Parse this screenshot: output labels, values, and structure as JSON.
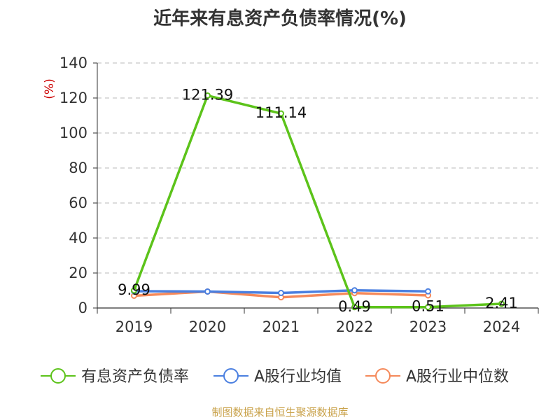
{
  "title": "近年来有息资产负债率情况(%)",
  "source": "制图数据来自恒生聚源数据库",
  "chart_data": {
    "type": "line",
    "title": "近年来有息资产负债率情况(%)",
    "y_unit": "(%)",
    "categories": [
      "2019",
      "2020",
      "2021",
      "2022",
      "2023",
      "2024"
    ],
    "ylim": [
      0,
      140
    ],
    "yticks": [
      0,
      20,
      40,
      60,
      80,
      100,
      120,
      140
    ],
    "grid": true,
    "legend_position": "bottom",
    "series": [
      {
        "name": "有息资产负债率",
        "color": "#5cc31a",
        "values": [
          9.99,
          121.39,
          111.14,
          0.49,
          0.51,
          2.41
        ],
        "labels": [
          "9.99",
          "121.39",
          "111.14",
          "0.49",
          "0.51",
          "2.41"
        ]
      },
      {
        "name": "A股行业均值",
        "color": "#4a7fe0",
        "values": [
          9.6,
          9.4,
          8.6,
          10.1,
          9.5,
          null
        ]
      },
      {
        "name": "A股行业中位数",
        "color": "#f5895a",
        "values": [
          7.0,
          9.4,
          6.1,
          8.5,
          7.2,
          null
        ]
      }
    ]
  }
}
